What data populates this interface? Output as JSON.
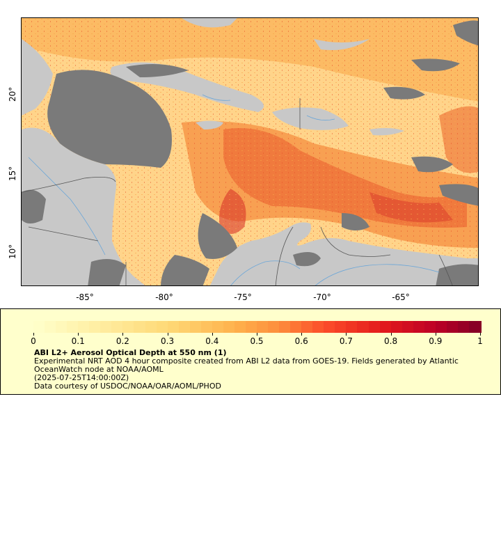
{
  "map": {
    "x_ticks": [
      "-85°",
      "-80°",
      "-75°",
      "-70°",
      "-65°"
    ],
    "y_ticks": [
      "20°",
      "15°",
      "10°"
    ],
    "extent": {
      "lon": [
        -89,
        -60
      ],
      "lat": [
        8,
        25.2
      ]
    },
    "colors": {
      "land": "#c8c8c8",
      "no_data": "#7a7a7a",
      "ocean_low": "#ffd98a",
      "rivers": "#6aa6d8",
      "borders": "#555555"
    }
  },
  "legend": {
    "title": "ABI L2+ Aerosol Optical Depth at 550 nm (1)",
    "description": "Experimental NRT AOD 4 hour composite created from ABI L2 data from GOES-19. Fields generated by Atlantic OceanWatch node at NOAA/AOML",
    "timestamp": "(2025-07-25T14:00:00Z)",
    "credit": "Data courtesy of USDOC/NOAA/OAR/AOML/PHOD",
    "scale_labels": [
      "0",
      "0.1",
      "0.2",
      "0.3",
      "0.4",
      "0.5",
      "0.6",
      "0.7",
      "0.8",
      "0.9",
      "1"
    ],
    "scale_range": [
      0,
      1
    ]
  }
}
